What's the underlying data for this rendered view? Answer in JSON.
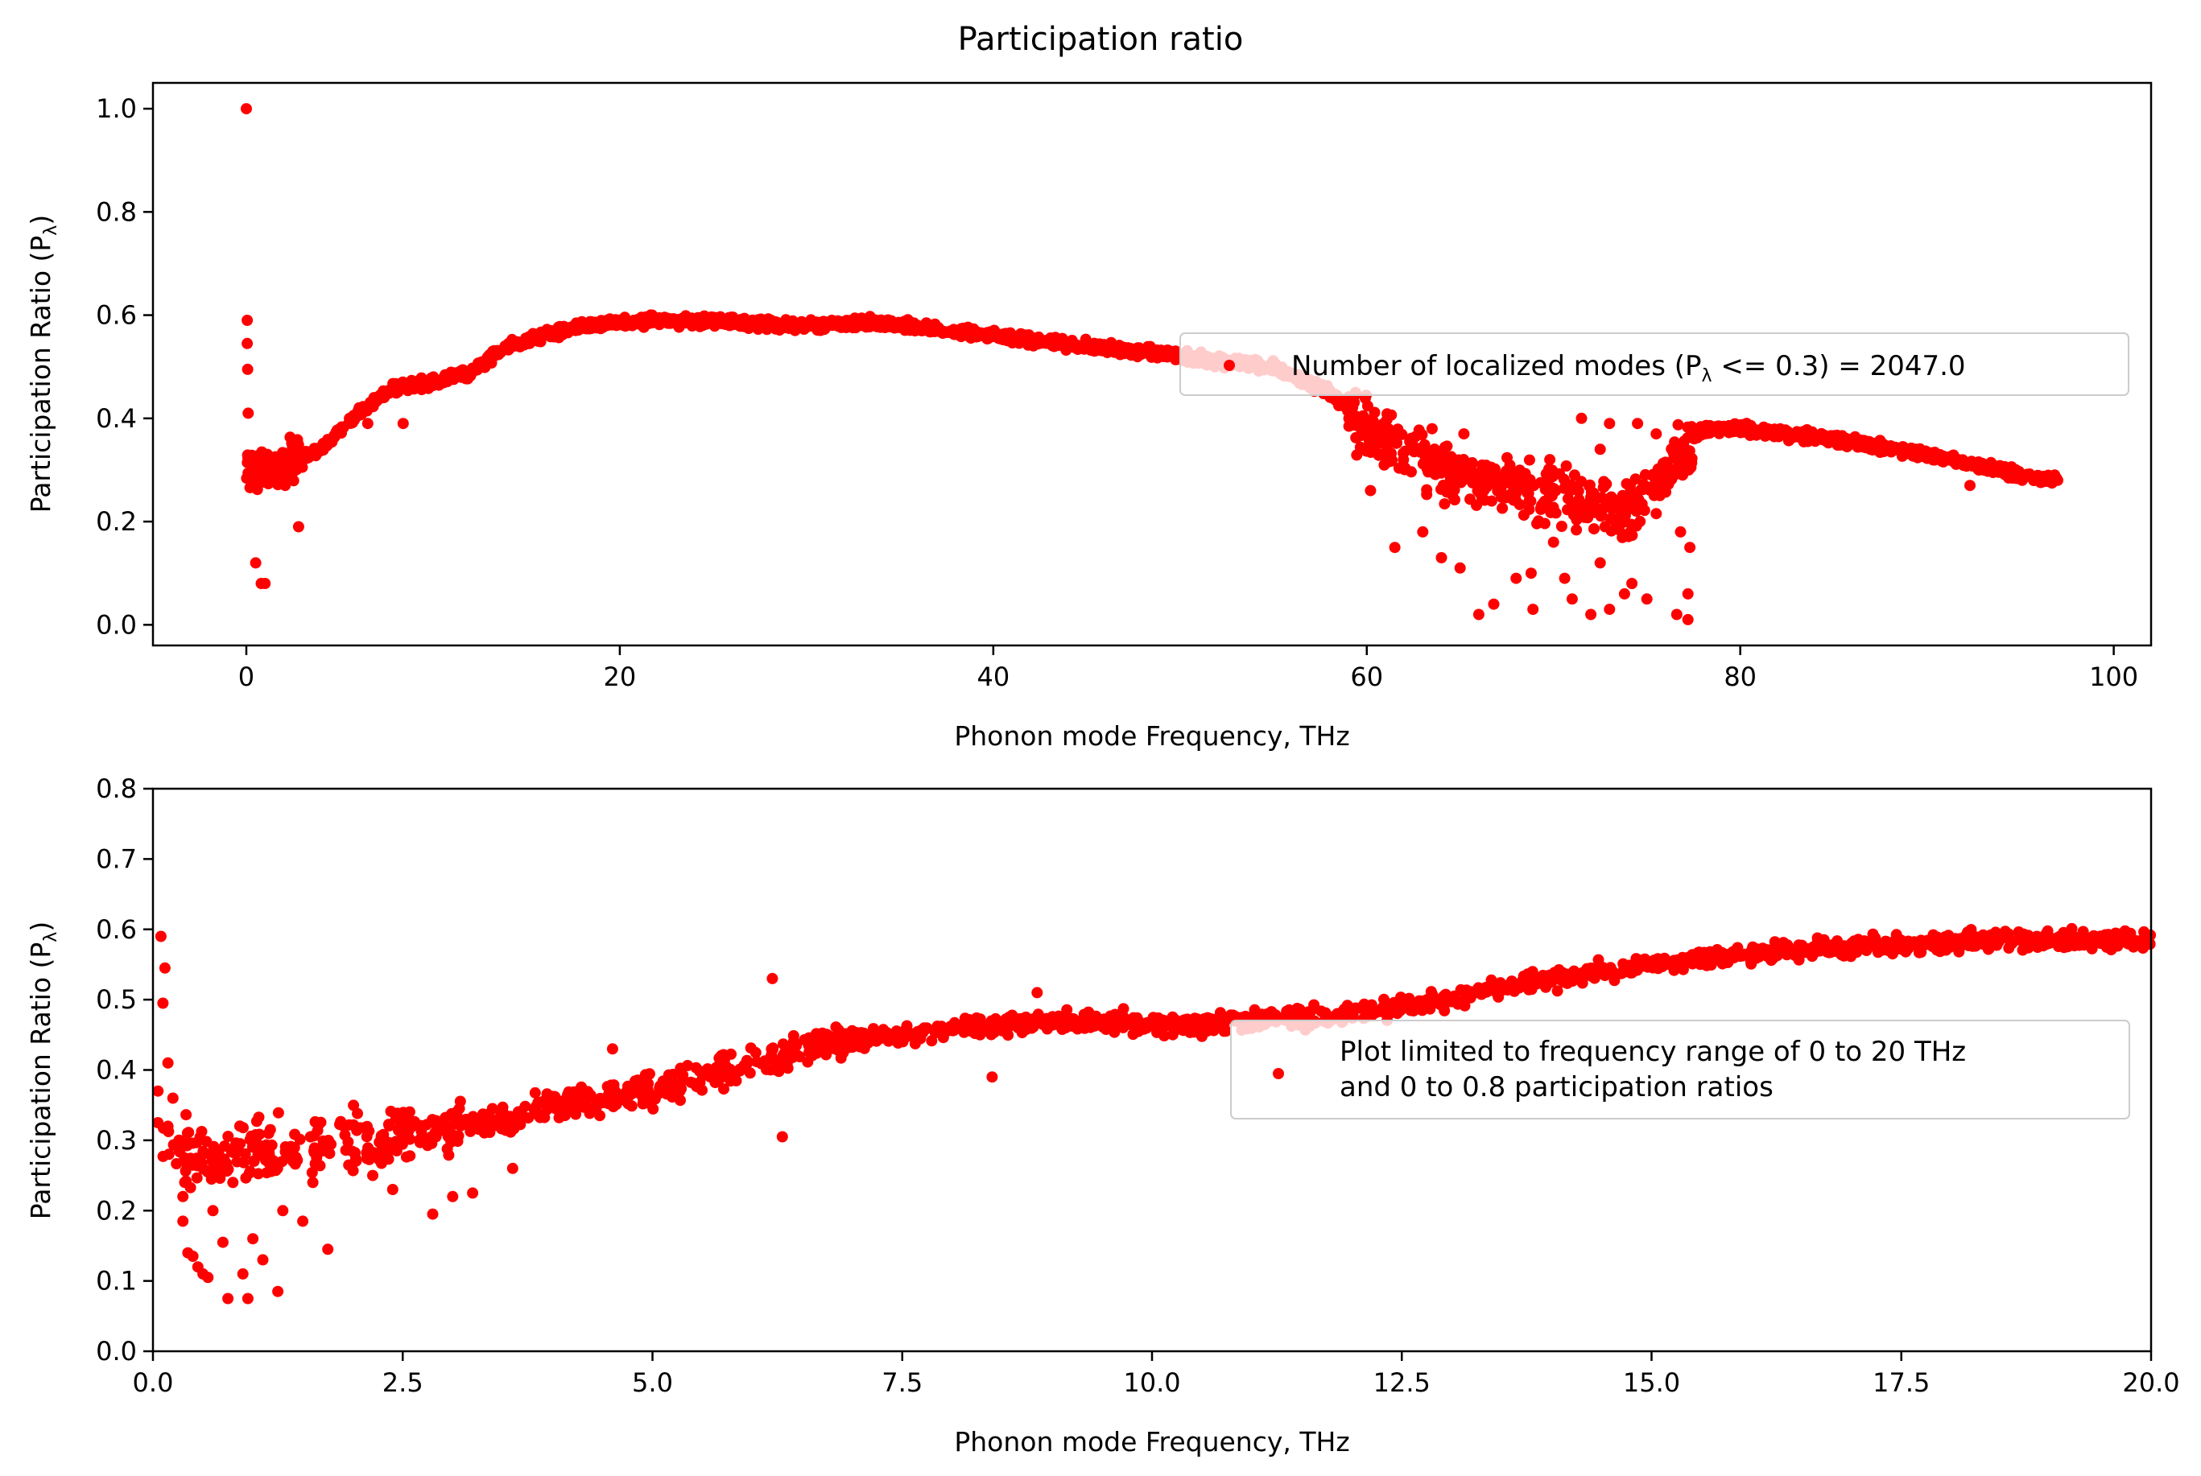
{
  "figure_title": "Participation ratio",
  "colors": {
    "points": "#ff0000",
    "axes": "#000000",
    "legend_border": "#cccccc"
  },
  "chart_data": [
    {
      "type": "scatter",
      "title": "",
      "xlabel": "Phonon mode Frequency, THz",
      "ylabel_main": "Participation Ratio (P",
      "ylabel_sub": "λ",
      "ylabel_tail": ")",
      "xlim": [
        -5,
        102
      ],
      "ylim": [
        -0.04,
        1.05
      ],
      "xticks": [
        0,
        20,
        40,
        60,
        80,
        100
      ],
      "xtick_labels": [
        "0",
        "20",
        "40",
        "60",
        "80",
        "100"
      ],
      "yticks": [
        0.0,
        0.2,
        0.4,
        0.6,
        0.8,
        1.0
      ],
      "ytick_labels": [
        "0.0",
        "0.2",
        "0.4",
        "0.6",
        "0.8",
        "1.0"
      ],
      "grid": false,
      "legend_placement": "center-right",
      "series": [
        {
          "name": "Number of localized modes (Pλ <= 0.3) = 2047.0",
          "legend_parts": [
            "Number of localized modes (P",
            "λ",
            " <= 0.3) = 2047.0"
          ],
          "color": "#ff0000",
          "trend": [
            [
              0,
              0.3
            ],
            [
              0.5,
              0.3
            ],
            [
              2,
              0.31
            ],
            [
              4,
              0.34
            ],
            [
              6,
              0.41
            ],
            [
              8,
              0.46
            ],
            [
              10,
              0.47
            ],
            [
              12,
              0.49
            ],
            [
              14,
              0.54
            ],
            [
              16,
              0.56
            ],
            [
              18,
              0.58
            ],
            [
              22,
              0.59
            ],
            [
              30,
              0.58
            ],
            [
              34,
              0.585
            ],
            [
              40,
              0.56
            ],
            [
              45,
              0.54
            ],
            [
              50,
              0.52
            ],
            [
              55,
              0.5
            ],
            [
              58,
              0.45
            ],
            [
              60,
              0.38
            ],
            [
              62,
              0.33
            ],
            [
              66,
              0.28
            ],
            [
              70,
              0.25
            ],
            [
              74,
              0.22
            ],
            [
              76,
              0.3
            ],
            [
              78,
              0.38
            ],
            [
              80,
              0.38
            ],
            [
              85,
              0.36
            ],
            [
              90,
              0.33
            ],
            [
              95,
              0.29
            ],
            [
              97,
              0.28
            ]
          ],
          "outliers": [
            [
              0,
              1.0
            ],
            [
              0.05,
              0.59
            ],
            [
              0.05,
              0.545
            ],
            [
              0.07,
              0.495
            ],
            [
              0.1,
              0.41
            ],
            [
              0.5,
              0.12
            ],
            [
              0.8,
              0.08
            ],
            [
              1.0,
              0.08
            ],
            [
              2.8,
              0.19
            ],
            [
              6.5,
              0.39
            ],
            [
              8.4,
              0.39
            ],
            [
              60.2,
              0.26
            ],
            [
              61.5,
              0.15
            ],
            [
              63.0,
              0.18
            ],
            [
              64.0,
              0.13
            ],
            [
              65.0,
              0.11
            ],
            [
              66.0,
              0.02
            ],
            [
              66.8,
              0.04
            ],
            [
              68.0,
              0.09
            ],
            [
              68.8,
              0.1
            ],
            [
              68.9,
              0.03
            ],
            [
              70.0,
              0.16
            ],
            [
              70.6,
              0.09
            ],
            [
              71.0,
              0.05
            ],
            [
              72.0,
              0.02
            ],
            [
              72.5,
              0.12
            ],
            [
              73.0,
              0.03
            ],
            [
              73.8,
              0.06
            ],
            [
              74.2,
              0.08
            ],
            [
              75.0,
              0.05
            ],
            [
              76.6,
              0.02
            ],
            [
              76.8,
              0.18
            ],
            [
              77.3,
              0.15
            ],
            [
              77.2,
              0.06
            ],
            [
              77.2,
              0.01
            ],
            [
              71.5,
              0.4
            ],
            [
              73.0,
              0.39
            ],
            [
              72.5,
              0.34
            ],
            [
              74.5,
              0.39
            ],
            [
              75.5,
              0.37
            ],
            [
              77.0,
              0.33
            ],
            [
              69.8,
              0.32
            ],
            [
              65.2,
              0.37
            ],
            [
              63.5,
              0.38
            ],
            [
              92.3,
              0.27
            ],
            [
              93.5,
              0.3
            ],
            [
              95.1,
              0.28
            ],
            [
              97.0,
              0.28
            ]
          ]
        }
      ]
    },
    {
      "type": "scatter",
      "title": "",
      "xlabel": "Phonon mode Frequency, THz",
      "ylabel_main": "Participation Ratio (P",
      "ylabel_sub": "λ",
      "ylabel_tail": ")",
      "xlim": [
        0,
        20
      ],
      "ylim": [
        0,
        0.8
      ],
      "xticks": [
        0,
        2.5,
        5,
        7.5,
        10,
        12.5,
        15,
        17.5,
        20
      ],
      "xtick_labels": [
        "0.0",
        "2.5",
        "5.0",
        "7.5",
        "10.0",
        "12.5",
        "15.0",
        "17.5",
        "20.0"
      ],
      "yticks": [
        0,
        0.1,
        0.2,
        0.3,
        0.4,
        0.5,
        0.6,
        0.7,
        0.8
      ],
      "ytick_labels": [
        "0.0",
        "0.1",
        "0.2",
        "0.3",
        "0.4",
        "0.5",
        "0.6",
        "0.7",
        "0.8"
      ],
      "grid": false,
      "legend_placement": "center-right",
      "series": [
        {
          "name": "Plot limited to frequency range of 0 to 20 THz\nand 0 to 0.8 participation ratios",
          "legend_lines": [
            "Plot limited to frequency range of 0 to 20 THz",
            "and 0 to 0.8 participation ratios"
          ],
          "color": "#ff0000",
          "trend": [
            [
              0.1,
              0.29
            ],
            [
              0.5,
              0.28
            ],
            [
              1.0,
              0.28
            ],
            [
              1.5,
              0.29
            ],
            [
              2.0,
              0.3
            ],
            [
              2.5,
              0.3
            ],
            [
              3.0,
              0.32
            ],
            [
              3.5,
              0.33
            ],
            [
              4.0,
              0.35
            ],
            [
              4.5,
              0.36
            ],
            [
              5.0,
              0.37
            ],
            [
              5.5,
              0.39
            ],
            [
              6.0,
              0.41
            ],
            [
              6.5,
              0.43
            ],
            [
              7.0,
              0.44
            ],
            [
              7.5,
              0.45
            ],
            [
              8.0,
              0.46
            ],
            [
              8.5,
              0.465
            ],
            [
              9.0,
              0.47
            ],
            [
              9.5,
              0.47
            ],
            [
              10.0,
              0.465
            ],
            [
              10.5,
              0.465
            ],
            [
              11.0,
              0.47
            ],
            [
              11.5,
              0.475
            ],
            [
              12.0,
              0.48
            ],
            [
              12.5,
              0.49
            ],
            [
              13.0,
              0.5
            ],
            [
              13.5,
              0.52
            ],
            [
              14.0,
              0.53
            ],
            [
              14.5,
              0.54
            ],
            [
              15.0,
              0.55
            ],
            [
              15.5,
              0.56
            ],
            [
              16.0,
              0.565
            ],
            [
              16.5,
              0.57
            ],
            [
              17.0,
              0.575
            ],
            [
              17.5,
              0.58
            ],
            [
              18.0,
              0.58
            ],
            [
              18.5,
              0.585
            ],
            [
              19.0,
              0.585
            ],
            [
              19.5,
              0.585
            ],
            [
              20.0,
              0.585
            ]
          ],
          "outliers": [
            [
              0.08,
              0.59
            ],
            [
              0.12,
              0.545
            ],
            [
              0.1,
              0.495
            ],
            [
              0.15,
              0.41
            ],
            [
              0.05,
              0.325
            ],
            [
              0.2,
              0.36
            ],
            [
              0.3,
              0.185
            ],
            [
              0.3,
              0.22
            ],
            [
              0.35,
              0.14
            ],
            [
              0.4,
              0.135
            ],
            [
              0.45,
              0.12
            ],
            [
              0.5,
              0.11
            ],
            [
              0.55,
              0.105
            ],
            [
              0.6,
              0.2
            ],
            [
              0.7,
              0.155
            ],
            [
              0.75,
              0.075
            ],
            [
              0.8,
              0.24
            ],
            [
              0.9,
              0.11
            ],
            [
              0.95,
              0.075
            ],
            [
              1.0,
              0.16
            ],
            [
              1.1,
              0.13
            ],
            [
              1.25,
              0.085
            ],
            [
              1.3,
              0.2
            ],
            [
              1.5,
              0.185
            ],
            [
              1.75,
              0.145
            ],
            [
              1.6,
              0.24
            ],
            [
              2.2,
              0.25
            ],
            [
              2.4,
              0.23
            ],
            [
              2.8,
              0.195
            ],
            [
              3.0,
              0.22
            ],
            [
              3.2,
              0.225
            ],
            [
              3.6,
              0.26
            ],
            [
              6.3,
              0.305
            ],
            [
              8.4,
              0.39
            ],
            [
              8.85,
              0.51
            ],
            [
              6.2,
              0.53
            ],
            [
              4.6,
              0.43
            ],
            [
              0.05,
              0.37
            ],
            [
              0.15,
              0.32
            ]
          ]
        }
      ]
    }
  ]
}
